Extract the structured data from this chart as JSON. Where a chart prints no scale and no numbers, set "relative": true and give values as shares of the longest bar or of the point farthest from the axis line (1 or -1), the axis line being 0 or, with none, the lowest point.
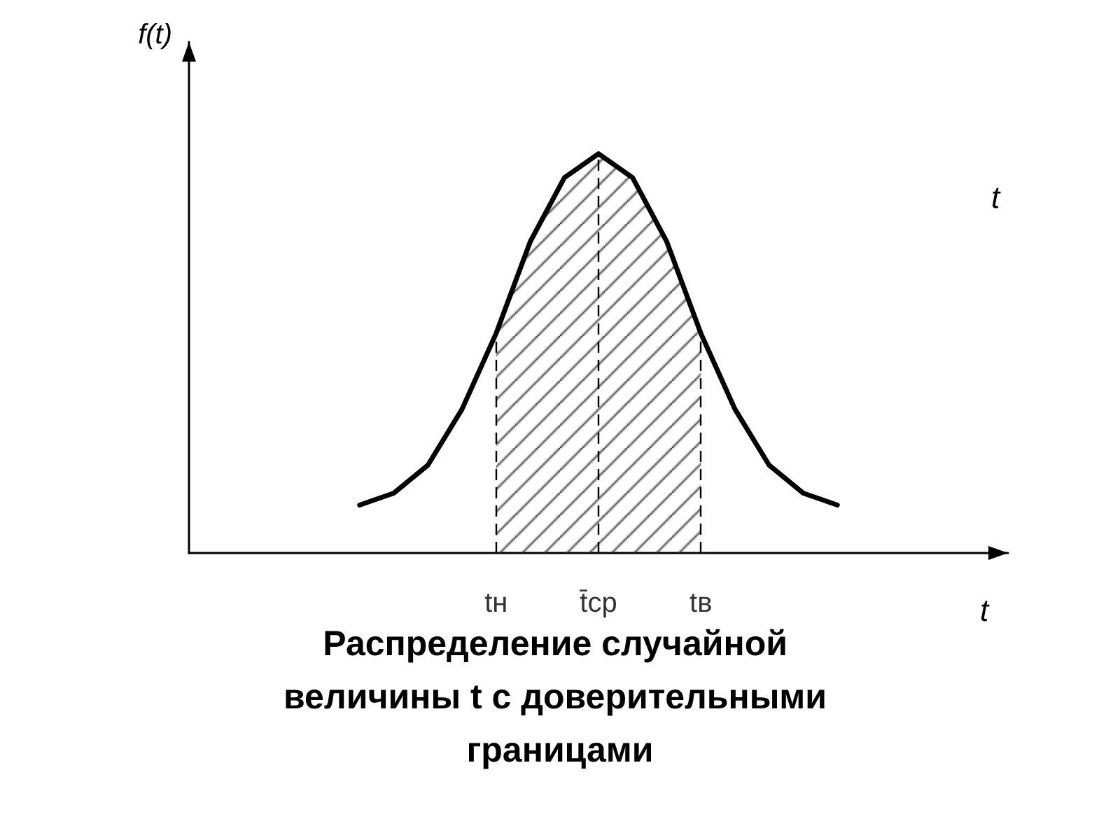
{
  "chart_data": {
    "type": "line",
    "relative": true,
    "title": "Распределение случайной величины t с доверительными границами",
    "xlabel": "t",
    "ylabel": "f(t)",
    "annotations": [
      "t"
    ],
    "categories": [
      null,
      null,
      null,
      null,
      null,
      null,
      null,
      null,
      null,
      "tн",
      null,
      null,
      "t̄ср",
      null,
      null,
      "tв",
      null,
      null,
      null,
      null,
      null,
      null,
      null,
      null,
      null
    ],
    "series": [
      {
        "color": "#000000",
        "values": [
          null,
          null,
          null,
          null,
          null,
          0.12,
          0.15,
          0.22,
          0.36,
          0.55,
          0.78,
          0.94,
          1,
          0.94,
          0.78,
          0.55,
          0.36,
          0.22,
          0.15,
          0.12,
          null,
          null,
          null,
          null,
          null
        ]
      }
    ],
    "bands": [
      {
        "axis": "x",
        "from": "tн",
        "to": "tв"
      }
    ],
    "ref_lines": [
      {
        "axis": "x",
        "value": "tн",
        "line_style": "dashed"
      },
      {
        "axis": "x",
        "value": "t̄ср",
        "line_style": "dashed"
      },
      {
        "axis": "x",
        "value": "tв",
        "line_style": "dashed"
      }
    ],
    "grid": false,
    "marker": "none",
    "line_style": "solid"
  }
}
